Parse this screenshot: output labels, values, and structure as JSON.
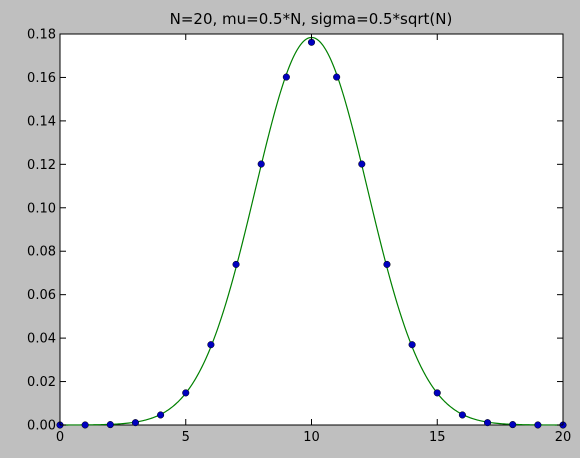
{
  "chart_data": {
    "type": "scatter",
    "title": "N=20, mu=0.5*N, sigma=0.5*sqrt(N)",
    "xlabel": "",
    "ylabel": "",
    "xlim": [
      0,
      20
    ],
    "ylim": [
      0,
      0.18
    ],
    "xticks": [
      "0",
      "5",
      "10",
      "15",
      "20"
    ],
    "yticks": [
      "0.00",
      "0.02",
      "0.04",
      "0.06",
      "0.08",
      "0.10",
      "0.12",
      "0.14",
      "0.16",
      "0.18"
    ],
    "grid": false,
    "series": [
      {
        "kind": "points",
        "color": "#0000bf",
        "x": [
          0,
          1,
          2,
          3,
          4,
          5,
          6,
          7,
          8,
          9,
          10,
          11,
          12,
          13,
          14,
          15,
          16,
          17,
          18,
          19,
          20
        ],
        "y": [
          1e-06,
          1.9e-05,
          0.000181,
          0.001087,
          0.004621,
          0.014786,
          0.036964,
          0.073929,
          0.120134,
          0.160179,
          0.176197,
          0.160179,
          0.120134,
          0.073929,
          0.036964,
          0.014786,
          0.004621,
          0.001087,
          0.000181,
          1.9e-05,
          1e-06
        ]
      },
      {
        "kind": "line",
        "color": "#008000",
        "function": "normal-pdf",
        "mu": 10,
        "sigma": 2.2361
      }
    ]
  }
}
